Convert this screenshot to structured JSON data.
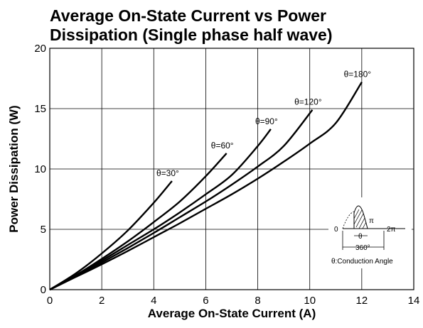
{
  "chart_data": {
    "type": "line",
    "title_lines": [
      "Average On-State Current vs Power",
      "Dissipation (Single phase half wave)"
    ],
    "xlabel": "Average On-State Current (A)",
    "ylabel": "Power Dissipation (W)",
    "xlim": [
      0,
      14
    ],
    "ylim": [
      0,
      20
    ],
    "xticks": [
      0,
      2,
      4,
      6,
      8,
      10,
      12,
      14
    ],
    "yticks": [
      0,
      5,
      10,
      15,
      20
    ],
    "grid": true,
    "series": [
      {
        "name": "θ=30°",
        "x": [
          0,
          1,
          2,
          3,
          4,
          4.7
        ],
        "y": [
          0,
          1.35,
          3.0,
          4.9,
          7.2,
          9.0
        ]
      },
      {
        "name": "θ=60°",
        "x": [
          0,
          1,
          2,
          3,
          4,
          5,
          6,
          6.8
        ],
        "y": [
          0,
          1.2,
          2.55,
          4.0,
          5.6,
          7.3,
          9.4,
          11.3
        ]
      },
      {
        "name": "θ=90°",
        "x": [
          0,
          1,
          2,
          3,
          4,
          5,
          6,
          7,
          8,
          8.5
        ],
        "y": [
          0,
          1.15,
          2.4,
          3.7,
          5.0,
          6.4,
          7.9,
          9.5,
          11.9,
          13.3
        ]
      },
      {
        "name": "θ=120°",
        "x": [
          0,
          1,
          2,
          3,
          4,
          5,
          6,
          7,
          8,
          9,
          10.1
        ],
        "y": [
          0,
          1.1,
          2.25,
          3.45,
          4.7,
          6.0,
          7.3,
          8.7,
          10.2,
          11.9,
          14.9
        ]
      },
      {
        "name": "θ=180°",
        "x": [
          0,
          1,
          2,
          3,
          4,
          5,
          6,
          7,
          8,
          9,
          10,
          11,
          12
        ],
        "y": [
          0,
          1.05,
          2.1,
          3.2,
          4.35,
          5.5,
          6.7,
          7.9,
          9.2,
          10.6,
          12.1,
          13.8,
          17.2
        ]
      }
    ]
  },
  "inset": {
    "zero_label": "0",
    "pi_label": "π",
    "two_pi_label": "2π",
    "theta_label": "θ",
    "period_label": "360°",
    "caption": "θ:Conduction Angle"
  }
}
